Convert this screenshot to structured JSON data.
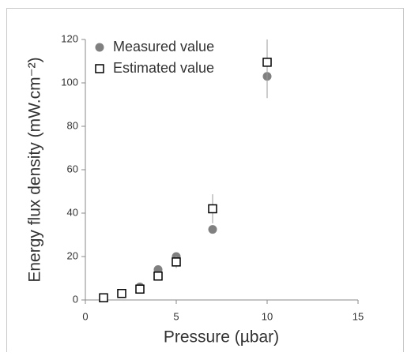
{
  "chart_data": {
    "type": "scatter",
    "x_label": "Pressure (µbar)",
    "y_label": "Energy flux density (mW.cm⁻²)",
    "xlim": [
      0,
      15
    ],
    "xticks": [
      0,
      5,
      10,
      15
    ],
    "ylim": [
      0,
      120
    ],
    "yticks": [
      0,
      20,
      40,
      60,
      80,
      100,
      120
    ],
    "legend": "top-left",
    "series": [
      {
        "name": "Measured value",
        "color": "#808080",
        "marker": "circle",
        "x": [
          1,
          2,
          3,
          4,
          5,
          7,
          10
        ],
        "values": [
          1,
          3,
          6,
          14,
          20,
          32.5,
          103
        ]
      },
      {
        "name": "Estimated value",
        "color": "#000000",
        "marker": "square",
        "x": [
          1,
          2,
          3,
          4,
          5,
          7,
          10
        ],
        "values": [
          1,
          3,
          5,
          11,
          17.5,
          42,
          109.5
        ],
        "errors": [
          0.2,
          0.5,
          0.8,
          1.8,
          2.8,
          6.7,
          16.5
        ]
      }
    ]
  }
}
